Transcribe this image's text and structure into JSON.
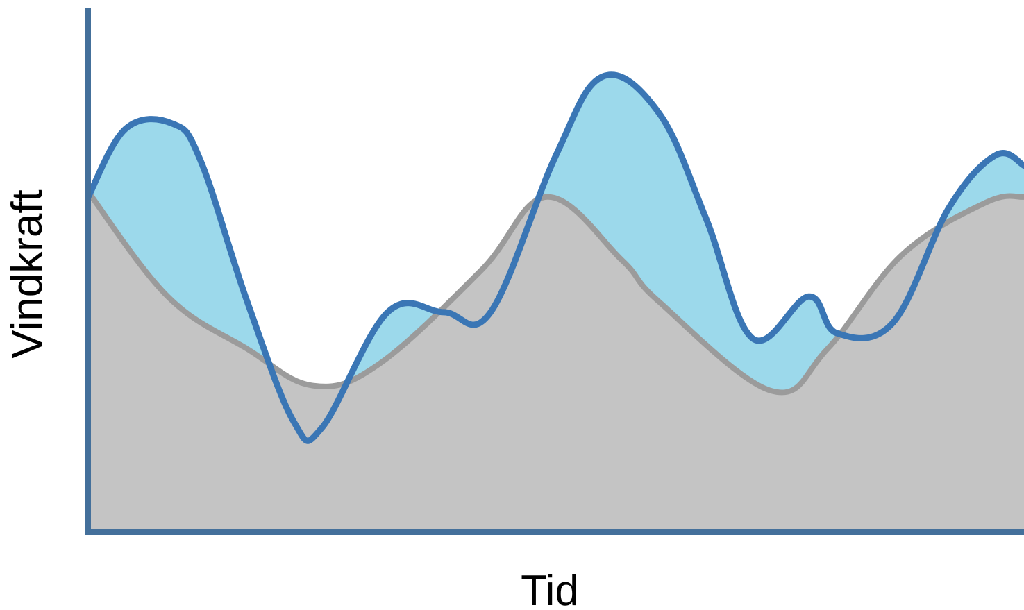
{
  "chart_data": {
    "type": "area",
    "xlabel": "Tid",
    "ylabel": "Vindkraft",
    "xlim": [
      0,
      100
    ],
    "ylim": [
      0,
      100
    ],
    "grid": false,
    "legend": "none",
    "colors": {
      "axis": "#44709B",
      "baseline_fill": "#C4C4C4",
      "baseline_line": "#9B9B9B",
      "actual_line": "#3A76B5",
      "surplus_fill": "#9CD9EB"
    },
    "series": [
      {
        "x": [
          0,
          8.5,
          17,
          24,
          31,
          42,
          49,
          57,
          61,
          73,
          79,
          87,
          96,
          100
        ],
        "y": [
          65,
          45,
          35,
          28,
          32,
          50,
          64,
          52,
          44,
          27,
          35,
          53,
          63,
          64
        ]
      },
      {
        "x": [
          0,
          4,
          9,
          12,
          17,
          22,
          25,
          32,
          38,
          43,
          50,
          55,
          61,
          66,
          71,
          77,
          80,
          86,
          92,
          97,
          100
        ],
        "y": [
          64,
          77,
          78,
          71,
          44,
          21,
          20,
          42,
          42,
          42,
          72,
          87,
          80,
          60,
          37,
          45,
          38,
          40,
          62,
          72,
          70
        ]
      }
    ]
  }
}
